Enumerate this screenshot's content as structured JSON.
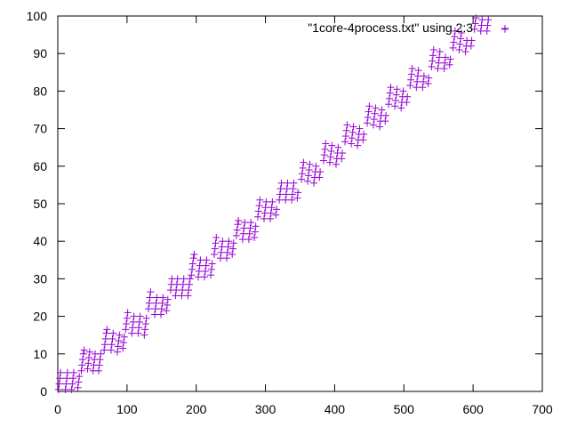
{
  "chart_data": {
    "type": "scatter",
    "title": "",
    "xlabel": "",
    "ylabel": "",
    "xlim": [
      0,
      700
    ],
    "ylim": [
      0,
      100
    ],
    "xticks": [
      0,
      100,
      200,
      300,
      400,
      500,
      600,
      700
    ],
    "yticks": [
      0,
      10,
      20,
      30,
      40,
      50,
      60,
      70,
      80,
      90,
      100
    ],
    "grid": false,
    "legend_position": "top-right",
    "series": [
      {
        "name": "\"1core-4process.txt\" using 2:3",
        "color": "#9400d3",
        "marker": "plus",
        "points": [
          [
            1,
            0.5
          ],
          [
            2,
            2
          ],
          [
            3,
            3.5
          ],
          [
            4,
            5
          ],
          [
            11,
            0.5
          ],
          [
            12,
            2
          ],
          [
            13,
            3.5
          ],
          [
            14,
            5
          ],
          [
            20,
            0.5
          ],
          [
            21,
            2
          ],
          [
            22,
            3.5
          ],
          [
            23,
            5
          ],
          [
            29,
            1
          ],
          [
            30,
            2.5
          ],
          [
            31,
            4
          ],
          [
            34,
            5.5
          ],
          [
            35,
            7
          ],
          [
            36,
            8.5
          ],
          [
            37,
            10
          ],
          [
            38,
            11
          ],
          [
            43,
            6
          ],
          [
            44,
            7.5
          ],
          [
            45,
            9
          ],
          [
            46,
            10.5
          ],
          [
            51,
            5.5
          ],
          [
            52,
            7
          ],
          [
            53,
            8.5
          ],
          [
            54,
            10
          ],
          [
            59,
            5.5
          ],
          [
            60,
            7
          ],
          [
            61,
            8.5
          ],
          [
            62,
            10
          ],
          [
            67,
            11
          ],
          [
            68,
            12.5
          ],
          [
            69,
            14
          ],
          [
            70,
            15.5
          ],
          [
            71,
            16.5
          ],
          [
            77,
            11
          ],
          [
            78,
            12.5
          ],
          [
            79,
            14
          ],
          [
            80,
            15.5
          ],
          [
            86,
            10.5
          ],
          [
            87,
            12
          ],
          [
            88,
            13.5
          ],
          [
            89,
            15
          ],
          [
            94,
            11.5
          ],
          [
            95,
            13
          ],
          [
            96,
            14.5
          ],
          [
            98,
            16.5
          ],
          [
            99,
            18
          ],
          [
            100,
            19.5
          ],
          [
            101,
            21
          ],
          [
            107,
            15.5
          ],
          [
            108,
            17
          ],
          [
            109,
            18.5
          ],
          [
            110,
            20
          ],
          [
            116,
            15.5
          ],
          [
            117,
            17
          ],
          [
            118,
            18.5
          ],
          [
            119,
            20
          ],
          [
            125,
            15
          ],
          [
            126,
            16.5
          ],
          [
            127,
            18
          ],
          [
            128,
            19.5
          ],
          [
            131,
            22
          ],
          [
            132,
            23.5
          ],
          [
            133,
            25
          ],
          [
            134,
            26.5
          ],
          [
            140,
            20.5
          ],
          [
            141,
            22
          ],
          [
            142,
            23.5
          ],
          [
            143,
            25
          ],
          [
            149,
            20.5
          ],
          [
            150,
            22
          ],
          [
            151,
            23.5
          ],
          [
            152,
            25
          ],
          [
            157,
            21.5
          ],
          [
            158,
            23
          ],
          [
            159,
            24.5
          ],
          [
            163,
            27
          ],
          [
            164,
            28.5
          ],
          [
            165,
            30
          ],
          [
            170,
            25.5
          ],
          [
            171,
            27
          ],
          [
            172,
            28.5
          ],
          [
            173,
            30
          ],
          [
            179,
            25.5
          ],
          [
            180,
            27
          ],
          [
            181,
            28.5
          ],
          [
            182,
            30
          ],
          [
            188,
            25.5
          ],
          [
            189,
            27
          ],
          [
            190,
            28.5
          ],
          [
            191,
            30
          ],
          [
            193,
            31
          ],
          [
            194,
            32.5
          ],
          [
            195,
            34
          ],
          [
            196,
            35.5
          ],
          [
            197,
            36.5
          ],
          [
            203,
            30.5
          ],
          [
            204,
            32
          ],
          [
            205,
            33.5
          ],
          [
            206,
            35
          ],
          [
            212,
            30.5
          ],
          [
            213,
            32
          ],
          [
            214,
            33.5
          ],
          [
            215,
            35
          ],
          [
            221,
            31
          ],
          [
            222,
            32.5
          ],
          [
            223,
            34
          ],
          [
            226,
            36.5
          ],
          [
            227,
            38
          ],
          [
            228,
            39.5
          ],
          [
            229,
            41
          ],
          [
            235,
            35.5
          ],
          [
            236,
            37
          ],
          [
            237,
            38.5
          ],
          [
            238,
            40
          ],
          [
            244,
            35.5
          ],
          [
            245,
            37
          ],
          [
            246,
            38.5
          ],
          [
            247,
            40
          ],
          [
            252,
            36.5
          ],
          [
            253,
            38
          ],
          [
            254,
            39.5
          ],
          [
            258,
            41.5
          ],
          [
            259,
            43
          ],
          [
            260,
            44.5
          ],
          [
            261,
            45.5
          ],
          [
            267,
            40.5
          ],
          [
            268,
            42
          ],
          [
            269,
            43.5
          ],
          [
            270,
            45
          ],
          [
            276,
            40.5
          ],
          [
            277,
            42
          ],
          [
            278,
            43.5
          ],
          [
            279,
            45
          ],
          [
            284,
            41
          ],
          [
            285,
            42.5
          ],
          [
            286,
            44
          ],
          [
            289,
            46.5
          ],
          [
            290,
            48
          ],
          [
            291,
            49.5
          ],
          [
            292,
            51
          ],
          [
            298,
            46
          ],
          [
            299,
            47.5
          ],
          [
            300,
            49
          ],
          [
            301,
            50.5
          ],
          [
            307,
            46
          ],
          [
            308,
            47.5
          ],
          [
            309,
            49
          ],
          [
            310,
            50.5
          ],
          [
            315,
            47
          ],
          [
            316,
            48.5
          ],
          [
            320,
            51
          ],
          [
            321,
            52.5
          ],
          [
            322,
            54
          ],
          [
            323,
            55.5
          ],
          [
            329,
            51
          ],
          [
            330,
            52.5
          ],
          [
            331,
            54
          ],
          [
            332,
            55.5
          ],
          [
            338,
            51
          ],
          [
            339,
            52.5
          ],
          [
            340,
            54
          ],
          [
            341,
            55.5
          ],
          [
            346,
            51.5
          ],
          [
            347,
            53
          ],
          [
            352,
            56.5
          ],
          [
            353,
            58
          ],
          [
            354,
            59.5
          ],
          [
            355,
            61
          ],
          [
            361,
            56
          ],
          [
            362,
            57.5
          ],
          [
            363,
            59
          ],
          [
            364,
            60.5
          ],
          [
            370,
            55.5
          ],
          [
            371,
            57
          ],
          [
            372,
            58.5
          ],
          [
            373,
            60
          ],
          [
            378,
            57
          ],
          [
            379,
            58.5
          ],
          [
            384,
            61.5
          ],
          [
            385,
            63
          ],
          [
            386,
            64.5
          ],
          [
            387,
            66
          ],
          [
            393,
            61
          ],
          [
            394,
            62.5
          ],
          [
            395,
            64
          ],
          [
            396,
            65.5
          ],
          [
            402,
            60.5
          ],
          [
            403,
            62
          ],
          [
            404,
            63.5
          ],
          [
            405,
            65
          ],
          [
            410,
            62
          ],
          [
            411,
            63.5
          ],
          [
            415,
            66.5
          ],
          [
            416,
            68
          ],
          [
            417,
            69.5
          ],
          [
            418,
            71
          ],
          [
            424,
            66
          ],
          [
            425,
            67.5
          ],
          [
            426,
            69
          ],
          [
            427,
            70.5
          ],
          [
            433,
            65.5
          ],
          [
            434,
            67
          ],
          [
            435,
            68.5
          ],
          [
            436,
            70
          ],
          [
            441,
            67
          ],
          [
            442,
            68.5
          ],
          [
            447,
            71.5
          ],
          [
            448,
            73
          ],
          [
            449,
            74.5
          ],
          [
            450,
            76
          ],
          [
            456,
            71
          ],
          [
            457,
            72.5
          ],
          [
            458,
            74
          ],
          [
            459,
            75.5
          ],
          [
            465,
            70.5
          ],
          [
            466,
            72
          ],
          [
            467,
            73.5
          ],
          [
            468,
            75
          ],
          [
            473,
            72
          ],
          [
            474,
            73.5
          ],
          [
            478,
            76.5
          ],
          [
            479,
            78
          ],
          [
            480,
            79.5
          ],
          [
            481,
            81
          ],
          [
            487,
            76
          ],
          [
            488,
            77.5
          ],
          [
            489,
            79
          ],
          [
            490,
            80.5
          ],
          [
            496,
            75.5
          ],
          [
            497,
            77
          ],
          [
            498,
            78.5
          ],
          [
            499,
            80
          ],
          [
            504,
            77
          ],
          [
            505,
            78.5
          ],
          [
            509,
            81.5
          ],
          [
            510,
            83
          ],
          [
            511,
            84.5
          ],
          [
            512,
            86
          ],
          [
            518,
            81
          ],
          [
            519,
            82.5
          ],
          [
            520,
            84
          ],
          [
            521,
            85.5
          ],
          [
            527,
            81
          ],
          [
            528,
            82.5
          ],
          [
            529,
            84
          ],
          [
            535,
            82
          ],
          [
            536,
            83.5
          ],
          [
            540,
            86.5
          ],
          [
            541,
            88
          ],
          [
            542,
            89.5
          ],
          [
            543,
            91
          ],
          [
            549,
            86
          ],
          [
            550,
            87.5
          ],
          [
            551,
            89
          ],
          [
            552,
            90.5
          ],
          [
            558,
            86
          ],
          [
            559,
            87.5
          ],
          [
            560,
            89
          ],
          [
            566,
            87
          ],
          [
            567,
            88.5
          ],
          [
            571,
            91.5
          ],
          [
            572,
            93
          ],
          [
            573,
            94.5
          ],
          [
            574,
            96
          ],
          [
            580,
            91
          ],
          [
            581,
            92.5
          ],
          [
            582,
            94
          ],
          [
            583,
            95.5
          ],
          [
            589,
            90.5
          ],
          [
            590,
            92
          ],
          [
            591,
            93.5
          ],
          [
            597,
            92
          ],
          [
            598,
            93.5
          ],
          [
            602,
            96.5
          ],
          [
            603,
            98
          ],
          [
            604,
            99.5
          ],
          [
            611,
            96
          ],
          [
            612,
            97.5
          ],
          [
            613,
            99
          ],
          [
            620,
            96
          ],
          [
            621,
            97.5
          ],
          [
            622,
            99
          ],
          [
            646,
            96.5
          ]
        ]
      }
    ]
  }
}
